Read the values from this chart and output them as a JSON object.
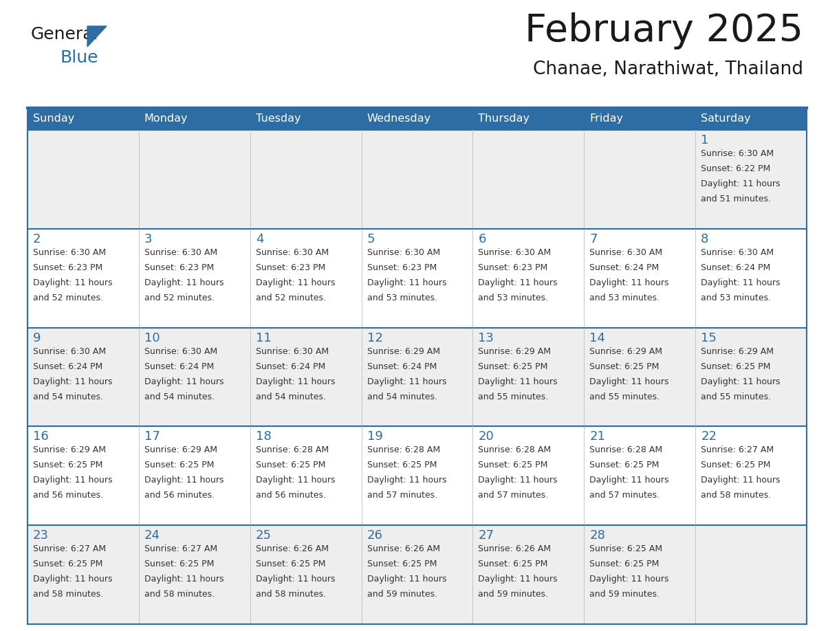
{
  "title": "February 2025",
  "subtitle": "Chanae, Narathiwat, Thailand",
  "header_bg": "#2E6DA4",
  "header_text": "#FFFFFF",
  "cell_bg_odd": "#EEEEEE",
  "cell_bg_even": "#FFFFFF",
  "grid_line_color": "#2E6DA4",
  "day_headers": [
    "Sunday",
    "Monday",
    "Tuesday",
    "Wednesday",
    "Thursday",
    "Friday",
    "Saturday"
  ],
  "title_color": "#1a1a1a",
  "subtitle_color": "#1a1a1a",
  "day_num_color": "#2E6DA4",
  "cell_text_color": "#333333",
  "logo_general_color": "#1a1a1a",
  "logo_blue_color": "#2E6DA4",
  "logo_triangle_color": "#2E6DA4",
  "calendar": [
    [
      null,
      null,
      null,
      null,
      null,
      null,
      {
        "day": 1,
        "sunrise": "6:30 AM",
        "sunset": "6:22 PM",
        "daylight_line1": "Daylight: 11 hours",
        "daylight_line2": "and 51 minutes."
      }
    ],
    [
      {
        "day": 2,
        "sunrise": "6:30 AM",
        "sunset": "6:23 PM",
        "daylight_line1": "Daylight: 11 hours",
        "daylight_line2": "and 52 minutes."
      },
      {
        "day": 3,
        "sunrise": "6:30 AM",
        "sunset": "6:23 PM",
        "daylight_line1": "Daylight: 11 hours",
        "daylight_line2": "and 52 minutes."
      },
      {
        "day": 4,
        "sunrise": "6:30 AM",
        "sunset": "6:23 PM",
        "daylight_line1": "Daylight: 11 hours",
        "daylight_line2": "and 52 minutes."
      },
      {
        "day": 5,
        "sunrise": "6:30 AM",
        "sunset": "6:23 PM",
        "daylight_line1": "Daylight: 11 hours",
        "daylight_line2": "and 53 minutes."
      },
      {
        "day": 6,
        "sunrise": "6:30 AM",
        "sunset": "6:23 PM",
        "daylight_line1": "Daylight: 11 hours",
        "daylight_line2": "and 53 minutes."
      },
      {
        "day": 7,
        "sunrise": "6:30 AM",
        "sunset": "6:24 PM",
        "daylight_line1": "Daylight: 11 hours",
        "daylight_line2": "and 53 minutes."
      },
      {
        "day": 8,
        "sunrise": "6:30 AM",
        "sunset": "6:24 PM",
        "daylight_line1": "Daylight: 11 hours",
        "daylight_line2": "and 53 minutes."
      }
    ],
    [
      {
        "day": 9,
        "sunrise": "6:30 AM",
        "sunset": "6:24 PM",
        "daylight_line1": "Daylight: 11 hours",
        "daylight_line2": "and 54 minutes."
      },
      {
        "day": 10,
        "sunrise": "6:30 AM",
        "sunset": "6:24 PM",
        "daylight_line1": "Daylight: 11 hours",
        "daylight_line2": "and 54 minutes."
      },
      {
        "day": 11,
        "sunrise": "6:30 AM",
        "sunset": "6:24 PM",
        "daylight_line1": "Daylight: 11 hours",
        "daylight_line2": "and 54 minutes."
      },
      {
        "day": 12,
        "sunrise": "6:29 AM",
        "sunset": "6:24 PM",
        "daylight_line1": "Daylight: 11 hours",
        "daylight_line2": "and 54 minutes."
      },
      {
        "day": 13,
        "sunrise": "6:29 AM",
        "sunset": "6:25 PM",
        "daylight_line1": "Daylight: 11 hours",
        "daylight_line2": "and 55 minutes."
      },
      {
        "day": 14,
        "sunrise": "6:29 AM",
        "sunset": "6:25 PM",
        "daylight_line1": "Daylight: 11 hours",
        "daylight_line2": "and 55 minutes."
      },
      {
        "day": 15,
        "sunrise": "6:29 AM",
        "sunset": "6:25 PM",
        "daylight_line1": "Daylight: 11 hours",
        "daylight_line2": "and 55 minutes."
      }
    ],
    [
      {
        "day": 16,
        "sunrise": "6:29 AM",
        "sunset": "6:25 PM",
        "daylight_line1": "Daylight: 11 hours",
        "daylight_line2": "and 56 minutes."
      },
      {
        "day": 17,
        "sunrise": "6:29 AM",
        "sunset": "6:25 PM",
        "daylight_line1": "Daylight: 11 hours",
        "daylight_line2": "and 56 minutes."
      },
      {
        "day": 18,
        "sunrise": "6:28 AM",
        "sunset": "6:25 PM",
        "daylight_line1": "Daylight: 11 hours",
        "daylight_line2": "and 56 minutes."
      },
      {
        "day": 19,
        "sunrise": "6:28 AM",
        "sunset": "6:25 PM",
        "daylight_line1": "Daylight: 11 hours",
        "daylight_line2": "and 57 minutes."
      },
      {
        "day": 20,
        "sunrise": "6:28 AM",
        "sunset": "6:25 PM",
        "daylight_line1": "Daylight: 11 hours",
        "daylight_line2": "and 57 minutes."
      },
      {
        "day": 21,
        "sunrise": "6:28 AM",
        "sunset": "6:25 PM",
        "daylight_line1": "Daylight: 11 hours",
        "daylight_line2": "and 57 minutes."
      },
      {
        "day": 22,
        "sunrise": "6:27 AM",
        "sunset": "6:25 PM",
        "daylight_line1": "Daylight: 11 hours",
        "daylight_line2": "and 58 minutes."
      }
    ],
    [
      {
        "day": 23,
        "sunrise": "6:27 AM",
        "sunset": "6:25 PM",
        "daylight_line1": "Daylight: 11 hours",
        "daylight_line2": "and 58 minutes."
      },
      {
        "day": 24,
        "sunrise": "6:27 AM",
        "sunset": "6:25 PM",
        "daylight_line1": "Daylight: 11 hours",
        "daylight_line2": "and 58 minutes."
      },
      {
        "day": 25,
        "sunrise": "6:26 AM",
        "sunset": "6:25 PM",
        "daylight_line1": "Daylight: 11 hours",
        "daylight_line2": "and 58 minutes."
      },
      {
        "day": 26,
        "sunrise": "6:26 AM",
        "sunset": "6:25 PM",
        "daylight_line1": "Daylight: 11 hours",
        "daylight_line2": "and 59 minutes."
      },
      {
        "day": 27,
        "sunrise": "6:26 AM",
        "sunset": "6:25 PM",
        "daylight_line1": "Daylight: 11 hours",
        "daylight_line2": "and 59 minutes."
      },
      {
        "day": 28,
        "sunrise": "6:25 AM",
        "sunset": "6:25 PM",
        "daylight_line1": "Daylight: 11 hours",
        "daylight_line2": "and 59 minutes."
      },
      null
    ]
  ]
}
